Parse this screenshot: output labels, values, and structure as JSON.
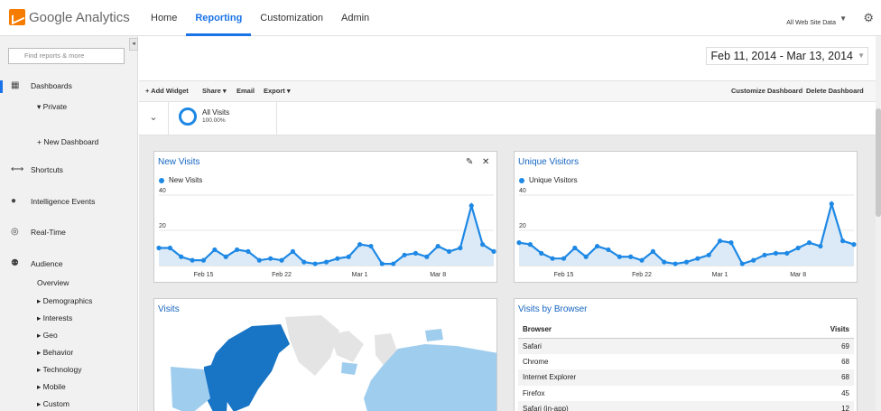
{
  "app": {
    "logo_text": "Google Analytics",
    "logo_icon": "analytics-logo-icon"
  },
  "topnav": {
    "tabs": [
      "Home",
      "Reporting",
      "Customization",
      "Admin"
    ],
    "active": "Reporting"
  },
  "account": {
    "label": "All Web Site Data"
  },
  "sidebar": {
    "search_placeholder": "Find reports & more",
    "dashboards": "Dashboards",
    "private": "▾ Private",
    "new_dashboard": "+ New Dashboard",
    "shortcuts": "Shortcuts",
    "intelligence": "Intelligence Events",
    "realtime": "Real-Time",
    "audience": "Audience",
    "audience_items": [
      "Overview",
      "▸ Demographics",
      "▸ Interests",
      "▸ Geo",
      "▸ Behavior",
      "▸ Technology",
      "▸ Mobile",
      "▸ Custom"
    ]
  },
  "date_range": "Feb 11, 2014 - Mar 13, 2014",
  "toolbar": {
    "add_widget": "+ Add Widget",
    "share": "Share ▾",
    "email": "Email",
    "export": "Export ▾",
    "customize": "Customize Dashboard",
    "delete": "Delete Dashboard"
  },
  "segment": {
    "name": "All Visits",
    "percent": "100.00%"
  },
  "widgets": {
    "new_visits": {
      "title": "New Visits",
      "legend": "New Visits"
    },
    "unique_visitors": {
      "title": "Unique Visitors",
      "legend": "Unique Visitors"
    },
    "visits": {
      "title": "Visits"
    },
    "visits_by_browser": {
      "title": "Visits by Browser",
      "col_browser": "Browser",
      "col_visits": "Visits",
      "rows": [
        {
          "browser": "Safari",
          "visits": "69"
        },
        {
          "browser": "Chrome",
          "visits": "68"
        },
        {
          "browser": "Internet Explorer",
          "visits": "68"
        },
        {
          "browser": "Firefox",
          "visits": "45"
        },
        {
          "browser": "Safari (in-app)",
          "visits": "12"
        }
      ]
    }
  },
  "chart_data": [
    {
      "type": "area",
      "title": "New Visits",
      "x_ticks": [
        "Feb 15",
        "Feb 22",
        "Mar 1",
        "Mar 8"
      ],
      "y_ticks": [
        "40",
        "20"
      ],
      "ylim": [
        0,
        40
      ],
      "series": [
        {
          "name": "New Visits",
          "values": [
            10,
            10,
            5,
            3,
            3,
            9,
            5,
            9,
            8,
            3,
            4,
            3,
            8,
            2,
            1,
            2,
            4,
            5,
            12,
            11,
            1,
            1,
            6,
            7,
            5,
            11,
            8,
            10,
            34,
            12,
            8
          ]
        }
      ]
    },
    {
      "type": "area",
      "title": "Unique Visitors",
      "x_ticks": [
        "Feb 15",
        "Feb 22",
        "Mar 1",
        "Mar 8"
      ],
      "y_ticks": [
        "40",
        "20"
      ],
      "ylim": [
        0,
        40
      ],
      "series": [
        {
          "name": "Unique Visitors",
          "values": [
            13,
            12,
            7,
            4,
            4,
            10,
            5,
            11,
            9,
            5,
            5,
            3,
            8,
            2,
            1,
            2,
            4,
            6,
            14,
            13,
            1,
            3,
            6,
            7,
            7,
            10,
            13,
            11,
            35,
            14,
            12
          ]
        }
      ]
    }
  ],
  "colors": {
    "accent": "#1a73e8",
    "series": "#1e88e5",
    "area": "#dbeaf6",
    "map_dark": "#1874c5",
    "map_light": "#9fcdee",
    "map_land": "#e4e4e4"
  }
}
